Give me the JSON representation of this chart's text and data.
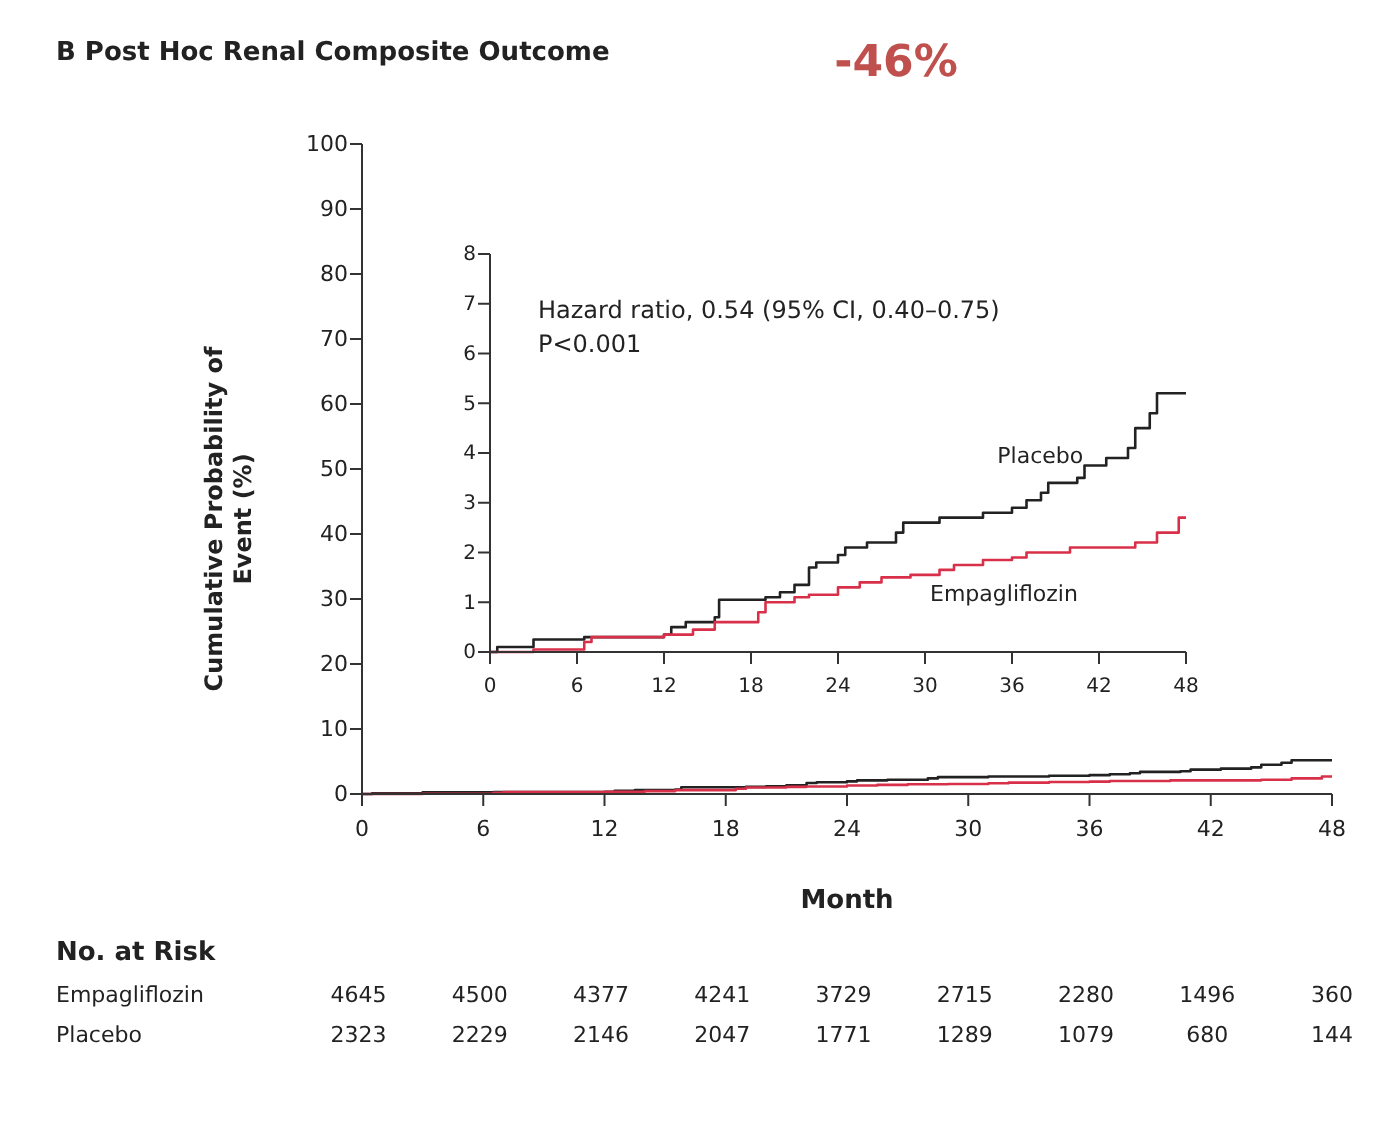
{
  "chart_data": [
    {
      "type": "step",
      "title": "B  Post Hoc Renal Composite Outcome",
      "annotations": [
        "-46%",
        "No. at Risk",
        "Empagliflozin 4645 4500 4377 4241 3729 2715 2280 1496 360",
        "Placebo 2323 2229 2146 2047 1771 1289 1079 680 144"
      ],
      "xlabel": "Month",
      "ylabel": "Cumulative Probability of Event (%)",
      "xlim": [
        0,
        48
      ],
      "xticks": [
        0,
        6,
        12,
        18,
        24,
        30,
        36,
        42,
        48
      ],
      "ylim": [
        0,
        100
      ],
      "yticks": [
        0,
        10,
        20,
        30,
        40,
        50,
        60,
        70,
        80,
        90,
        100
      ],
      "grid": false,
      "legend": false,
      "series": [
        {
          "color": "#222222",
          "x": [
            0,
            0.5,
            3,
            6.5,
            12,
            12.5,
            13.5,
            15.5,
            15.8,
            19,
            20,
            21,
            22,
            22.5,
            24,
            24.5,
            26,
            28,
            28.5,
            31,
            34,
            36,
            37,
            38,
            38.5,
            40.5,
            41,
            42.5,
            44,
            44.5,
            45.5,
            46,
            48
          ],
          "values": [
            0,
            0.1,
            0.25,
            0.3,
            0.35,
            0.5,
            0.6,
            0.7,
            1.05,
            1.1,
            1.2,
            1.35,
            1.7,
            1.8,
            1.95,
            2.1,
            2.2,
            2.4,
            2.6,
            2.7,
            2.8,
            2.9,
            3.05,
            3.2,
            3.4,
            3.5,
            3.75,
            3.9,
            4.1,
            4.5,
            4.8,
            5.2,
            5.2
          ]
        },
        {
          "color": "#d9304a",
          "x": [
            0,
            3,
            6.5,
            7,
            12,
            14,
            15.5,
            18.5,
            19,
            21,
            22,
            24,
            25.5,
            27,
            29,
            31,
            32,
            34,
            36,
            37,
            40,
            44.5,
            46,
            47.5,
            48
          ],
          "values": [
            0,
            0.05,
            0.2,
            0.3,
            0.35,
            0.45,
            0.6,
            0.8,
            1.0,
            1.1,
            1.15,
            1.3,
            1.4,
            1.5,
            1.55,
            1.65,
            1.75,
            1.85,
            1.9,
            2.0,
            2.1,
            2.2,
            2.4,
            2.7,
            2.7
          ]
        }
      ]
    },
    {
      "type": "step",
      "annotations": [
        "Hazard ratio, 0.54 (95% CI, 0.40–0.75)",
        "P<0.001"
      ],
      "xlim": [
        0,
        48
      ],
      "xticks": [
        0,
        6,
        12,
        18,
        24,
        30,
        36,
        42,
        48
      ],
      "ylim": [
        0,
        8
      ],
      "yticks": [
        0,
        1,
        2,
        3,
        4,
        5,
        6,
        7,
        8
      ],
      "grid": false,
      "legend": false,
      "series": [
        {
          "name": "Placebo",
          "color": "#222222",
          "x": [
            0,
            0.5,
            3,
            6.5,
            12,
            12.5,
            13.5,
            15.5,
            15.8,
            19,
            20,
            21,
            22,
            22.5,
            24,
            24.5,
            26,
            28,
            28.5,
            31,
            34,
            36,
            37,
            38,
            38.5,
            40.5,
            41,
            42.5,
            44,
            44.5,
            45.5,
            46,
            48
          ],
          "values": [
            0,
            0.1,
            0.25,
            0.3,
            0.35,
            0.5,
            0.6,
            0.7,
            1.05,
            1.1,
            1.2,
            1.35,
            1.7,
            1.8,
            1.95,
            2.1,
            2.2,
            2.4,
            2.6,
            2.7,
            2.8,
            2.9,
            3.05,
            3.2,
            3.4,
            3.5,
            3.75,
            3.9,
            4.1,
            4.5,
            4.8,
            5.2,
            5.2
          ]
        },
        {
          "name": "Empagliflozin",
          "color": "#d9304a",
          "x": [
            0,
            3,
            6.5,
            7,
            12,
            14,
            15.5,
            18.5,
            19,
            21,
            22,
            24,
            25.5,
            27,
            29,
            31,
            32,
            34,
            36,
            37,
            40,
            44.5,
            46,
            47.5,
            48
          ],
          "values": [
            0,
            0.05,
            0.2,
            0.3,
            0.35,
            0.45,
            0.6,
            0.8,
            1.0,
            1.1,
            1.15,
            1.3,
            1.4,
            1.5,
            1.55,
            1.65,
            1.75,
            1.85,
            1.9,
            2.0,
            2.1,
            2.2,
            2.4,
            2.7,
            2.7
          ]
        }
      ]
    }
  ]
}
